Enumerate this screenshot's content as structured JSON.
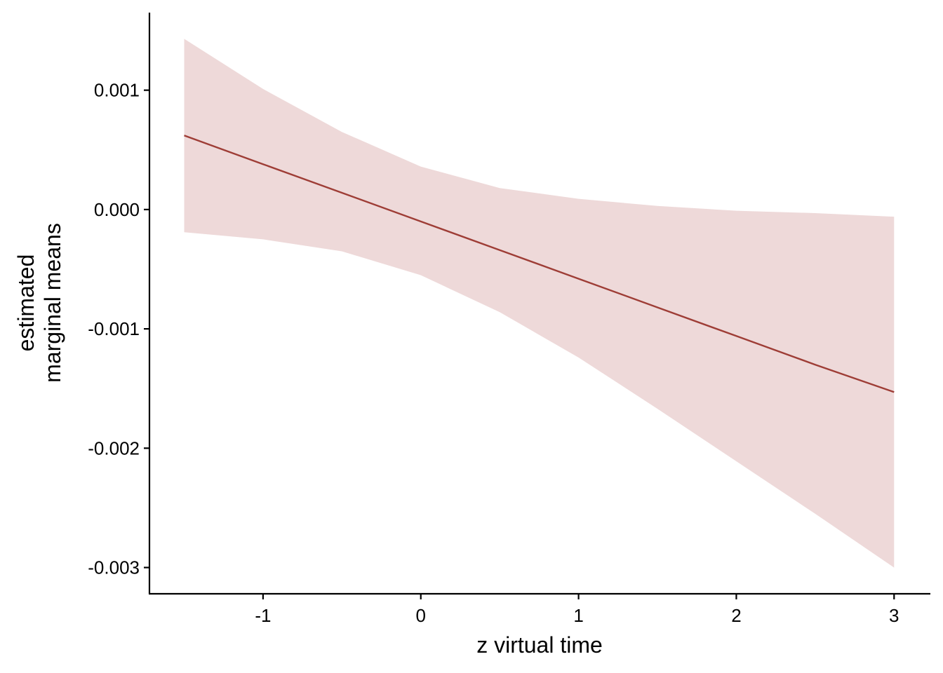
{
  "chart_data": {
    "type": "line",
    "title": "",
    "xlabel": "z virtual time",
    "ylabel": [
      "estimated",
      "marginal means"
    ],
    "xlim": [
      -1.72,
      3.23
    ],
    "ylim": [
      -0.00322,
      0.00165
    ],
    "x_ticks": [
      {
        "value": -1,
        "label": "-1"
      },
      {
        "value": 0,
        "label": "0"
      },
      {
        "value": 1,
        "label": "1"
      },
      {
        "value": 2,
        "label": "2"
      },
      {
        "value": 3,
        "label": "3"
      }
    ],
    "y_ticks": [
      {
        "value": 0.001,
        "label": "0.001"
      },
      {
        "value": 0.0,
        "label": "0.000"
      },
      {
        "value": -0.001,
        "label": "-0.001"
      },
      {
        "value": -0.002,
        "label": "-0.002"
      },
      {
        "value": -0.003,
        "label": "-0.003"
      }
    ],
    "grid": false,
    "legend": "none",
    "series": [
      {
        "line_color": "#9e3d36",
        "band_color": "#eed9d9",
        "x": [
          -1.5,
          -1.0,
          -0.5,
          0.0,
          0.5,
          1.0,
          1.5,
          2.0,
          2.5,
          3.0
        ],
        "y": [
          0.00062,
          0.00038,
          0.00014,
          -0.0001,
          -0.00034,
          -0.00058,
          -0.00082,
          -0.00106,
          -0.0013,
          -0.00153
        ],
        "lower": [
          -0.00019,
          -0.00025,
          -0.00035,
          -0.00055,
          -0.00086,
          -0.00124,
          -0.00167,
          -0.00211,
          -0.00255,
          -0.003
        ],
        "upper": [
          0.00143,
          0.00101,
          0.00065,
          0.00036,
          0.00018,
          9e-05,
          3e-05,
          -1e-05,
          -3e-05,
          -6e-05
        ]
      }
    ]
  }
}
